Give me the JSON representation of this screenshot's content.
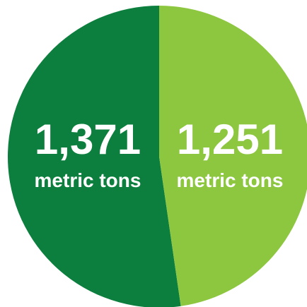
{
  "chart_data": {
    "type": "pie",
    "title": "",
    "slices": [
      {
        "label": "",
        "value": 1371,
        "display_value": "1,371",
        "unit": "metric tons",
        "color": "#0c7f3e"
      },
      {
        "label": "",
        "value": 1251,
        "display_value": "1,251",
        "unit": "metric tons",
        "color": "#8dc63f"
      }
    ],
    "start_angle_deg": 0,
    "direction": "counterclockwise",
    "background": "#ffffff"
  }
}
